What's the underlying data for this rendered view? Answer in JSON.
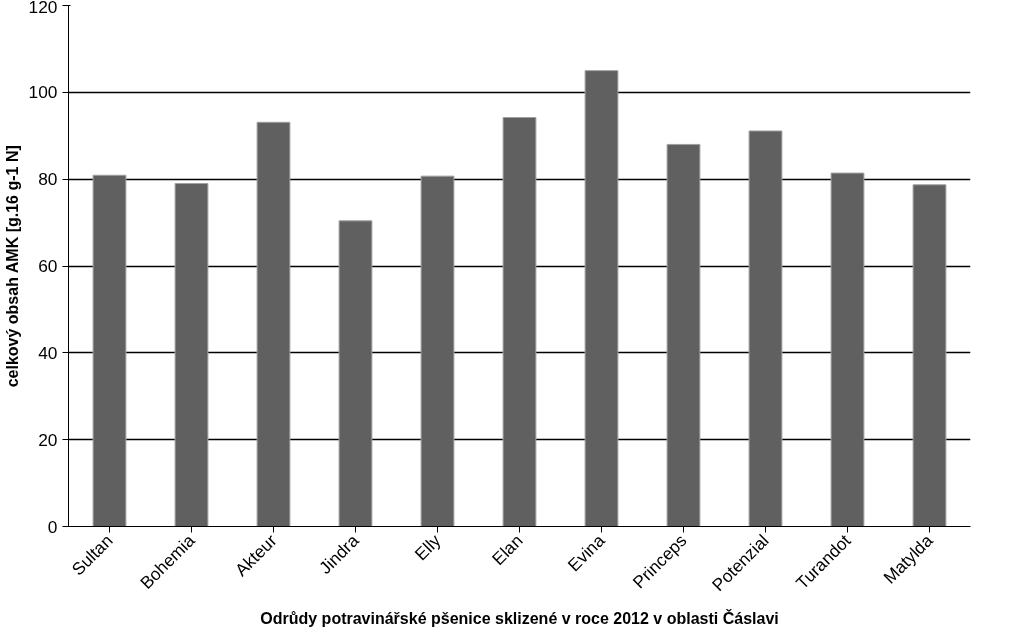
{
  "chart_data": {
    "type": "bar",
    "xlabel": "Odrůdy potravinářské pšenice sklizené v roce 2012 v oblasti Čáslavi",
    "ylabel": "celkový obsah AMK [g.16 g-1 N]",
    "categories": [
      "Sultan",
      "Bohemia",
      "Akteur",
      "Jindra",
      "Elly",
      "Elan",
      "Evina",
      "Princeps",
      "Potenzial",
      "Turandot",
      "Matylda"
    ],
    "values": [
      80.9,
      79.0,
      93.1,
      70.4,
      80.7,
      94.2,
      105.0,
      88.0,
      91.1,
      81.4,
      78.7
    ],
    "color": "#606060",
    "ylim": [
      0,
      120
    ],
    "yticks": [
      0,
      20,
      40,
      60,
      80,
      100,
      120
    ],
    "grid": "y"
  }
}
